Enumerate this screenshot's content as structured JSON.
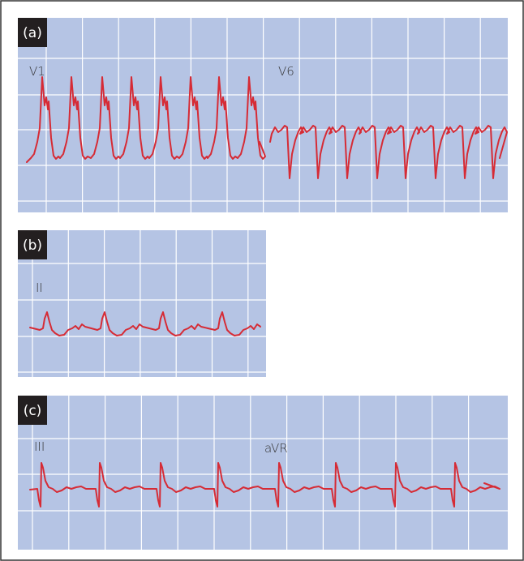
{
  "panels": [
    {
      "label": "(a)",
      "leads": [
        "V1",
        "V6"
      ]
    },
    {
      "label": "(b)",
      "leads": [
        "II"
      ]
    },
    {
      "label": "(c)",
      "leads": [
        "III",
        "aVR"
      ]
    }
  ]
}
